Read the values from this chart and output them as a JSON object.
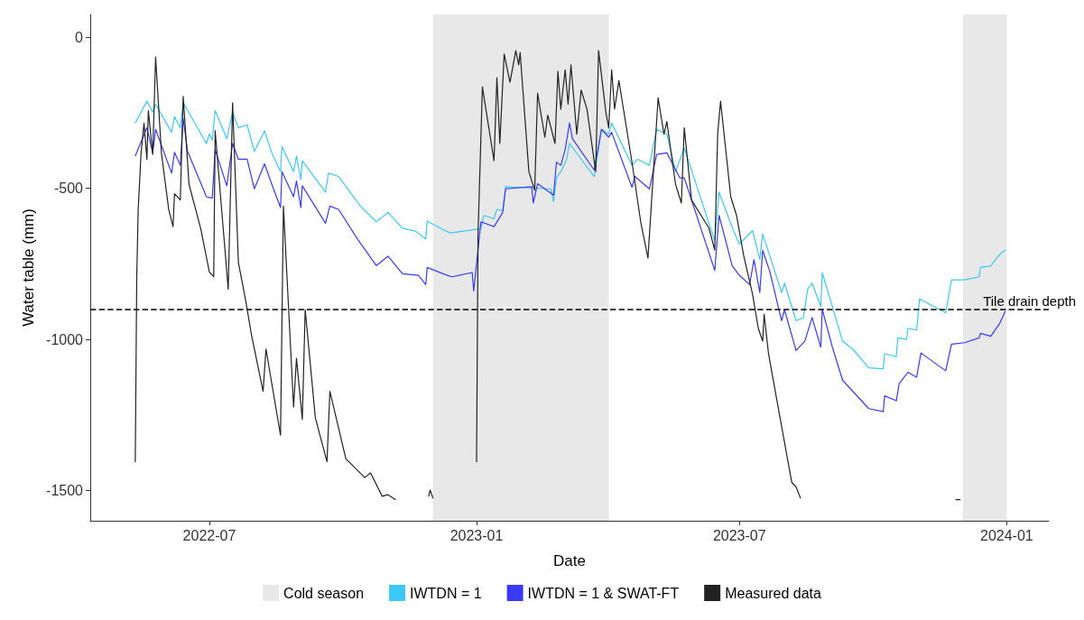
{
  "chart_data": {
    "type": "line",
    "xlabel": "Date",
    "ylabel": "Water table (mm)",
    "legend": "bottom",
    "xlim": [
      "2022-04-10",
      "2024-01-30"
    ],
    "xticks": [
      {
        "value": "2022-07-01",
        "label": "2022-07"
      },
      {
        "value": "2023-01-01",
        "label": "2023-01"
      },
      {
        "value": "2023-07-01",
        "label": "2023-07"
      },
      {
        "value": "2024-01-01",
        "label": "2024-01"
      }
    ],
    "ylim": [
      -1600,
      75
    ],
    "yticks": [
      0,
      -500,
      -1000,
      -1500
    ],
    "bands": [
      {
        "axis": "x",
        "from": "2022-12-02",
        "to": "2023-04-02",
        "label": "Cold season",
        "color": "#e8e8e8"
      },
      {
        "axis": "x",
        "from": "2023-12-02",
        "to": "2024-01-01",
        "color": "#e8e8e8"
      }
    ],
    "ref_lines": [
      {
        "axis": "y",
        "value": -900,
        "label": "Tile drain depth",
        "line_style": "dashed",
        "color": "#000000"
      }
    ],
    "series": [
      {
        "name": "IWTDN = 1",
        "color": "#3cc8f5",
        "x": [
          "2022-05-11",
          "2022-05-19",
          "2022-05-23",
          "2022-05-25",
          "2022-06-05",
          "2022-06-07",
          "2022-06-11",
          "2022-06-13",
          "2022-06-29",
          "2022-07-01",
          "2022-07-03",
          "2022-07-05",
          "2022-07-13",
          "2022-07-17",
          "2022-07-21",
          "2022-07-27",
          "2022-08-01",
          "2022-08-08",
          "2022-08-13",
          "2022-08-19",
          "2022-08-20",
          "2022-08-28",
          "2022-08-30",
          "2022-09-02",
          "2022-09-03",
          "2022-09-19",
          "2022-09-21",
          "2022-09-28",
          "2022-10-13",
          "2022-10-24",
          "2022-11-01",
          "2022-11-11",
          "2022-11-20",
          "2022-11-27",
          "2022-11-28",
          "2022-12-09",
          "2022-12-14",
          "2023-01-04",
          "2023-01-06",
          "2023-01-13",
          "2023-01-15",
          "2023-01-19",
          "2023-01-21",
          "2023-02-21",
          "2023-02-23",
          "2023-02-25",
          "2023-02-28",
          "2023-03-04",
          "2023-03-06",
          "2023-03-23",
          "2023-03-28",
          "2023-04-02",
          "2023-04-04",
          "2023-04-18",
          "2023-04-22",
          "2023-04-30",
          "2023-05-05",
          "2023-05-12",
          "2023-05-18",
          "2023-05-24",
          "2023-06-14",
          "2023-06-17",
          "2023-06-27",
          "2023-07-01",
          "2023-07-10",
          "2023-07-15",
          "2023-07-17",
          "2023-07-30",
          "2023-08-01",
          "2023-08-09",
          "2023-08-14",
          "2023-08-17",
          "2023-08-20",
          "2023-08-26",
          "2023-08-27",
          "2023-09-10",
          "2023-09-17",
          "2023-09-28",
          "2023-10-08",
          "2023-10-09",
          "2023-10-17",
          "2023-10-18",
          "2023-10-24",
          "2023-10-25",
          "2023-10-31",
          "2023-11-02",
          "2023-11-20",
          "2023-11-24",
          "2023-12-03",
          "2023-12-13",
          "2023-12-14",
          "2023-12-21",
          "2023-12-28",
          "2023-12-31"
        ],
        "values": [
          -284,
          -212,
          -248,
          -222,
          -315,
          -263,
          -300,
          -217,
          -352,
          -321,
          -341,
          -243,
          -336,
          -248,
          -300,
          -290,
          -378,
          -310,
          -383,
          -445,
          -362,
          -445,
          -393,
          -471,
          -409,
          -513,
          -450,
          -461,
          -559,
          -611,
          -580,
          -632,
          -642,
          -668,
          -609,
          -637,
          -648,
          -634,
          -590,
          -601,
          -570,
          -575,
          -495,
          -502,
          -544,
          -466,
          -445,
          -404,
          -352,
          -461,
          -305,
          -321,
          -284,
          -424,
          -404,
          -424,
          -305,
          -321,
          -445,
          -367,
          -674,
          -513,
          -642,
          -684,
          -640,
          -736,
          -651,
          -845,
          -814,
          -938,
          -928,
          -834,
          -814,
          -891,
          -779,
          -1006,
          -1032,
          -1094,
          -1097,
          -1047,
          -1058,
          -995,
          -1000,
          -964,
          -969,
          -866,
          -912,
          -803,
          -803,
          -793,
          -762,
          -757,
          -715,
          -705
        ]
      },
      {
        "name": "IWTDN = 1 & SWAT-FT",
        "color": "#3a3af5",
        "x": [
          "2022-05-11",
          "2022-05-15",
          "2022-05-19",
          "2022-05-23",
          "2022-05-25",
          "2022-06-05",
          "2022-06-07",
          "2022-06-11",
          "2022-06-13",
          "2022-06-16",
          "2022-06-29",
          "2022-07-03",
          "2022-07-05",
          "2022-07-13",
          "2022-07-17",
          "2022-07-21",
          "2022-07-27",
          "2022-08-01",
          "2022-08-08",
          "2022-08-13",
          "2022-08-19",
          "2022-08-20",
          "2022-08-28",
          "2022-08-30",
          "2022-09-02",
          "2022-09-03",
          "2022-09-19",
          "2022-09-22",
          "2022-09-28",
          "2022-10-11",
          "2022-10-24",
          "2022-11-01",
          "2022-11-11",
          "2022-11-22",
          "2022-11-27",
          "2022-11-28",
          "2022-12-09",
          "2022-12-15",
          "2022-12-29",
          "2022-12-30",
          "2023-01-04",
          "2023-01-13",
          "2023-01-19",
          "2023-01-21",
          "2023-02-08",
          "2023-02-09",
          "2023-02-12",
          "2023-02-23",
          "2023-02-25",
          "2023-02-28",
          "2023-03-03",
          "2023-03-06",
          "2023-03-08",
          "2023-03-23",
          "2023-03-28",
          "2023-04-02",
          "2023-04-04",
          "2023-04-18",
          "2023-04-20",
          "2023-04-30",
          "2023-05-05",
          "2023-05-12",
          "2023-05-21",
          "2023-05-24",
          "2023-06-14",
          "2023-06-17",
          "2023-06-26",
          "2023-07-01",
          "2023-07-08",
          "2023-07-11",
          "2023-07-15",
          "2023-07-17",
          "2023-07-22",
          "2023-07-30",
          "2023-08-01",
          "2023-08-09",
          "2023-08-15",
          "2023-08-20",
          "2023-08-26",
          "2023-08-27",
          "2023-09-03",
          "2023-09-10",
          "2023-09-19",
          "2023-09-28",
          "2023-10-08",
          "2023-10-09",
          "2023-10-17",
          "2023-10-19",
          "2023-10-25",
          "2023-10-31",
          "2023-11-03",
          "2023-11-20",
          "2023-11-24",
          "2023-12-03",
          "2023-12-13",
          "2023-12-14",
          "2023-12-21",
          "2023-12-27",
          "2023-12-31"
        ],
        "values": [
          -393,
          -347,
          -300,
          -383,
          -305,
          -450,
          -381,
          -424,
          -269,
          -378,
          -528,
          -533,
          -372,
          -492,
          -352,
          -404,
          -404,
          -502,
          -419,
          -487,
          -564,
          -445,
          -528,
          -476,
          -564,
          -492,
          -616,
          -559,
          -570,
          -668,
          -756,
          -725,
          -783,
          -788,
          -819,
          -762,
          -783,
          -793,
          -779,
          -840,
          -611,
          -627,
          -580,
          -502,
          -495,
          -549,
          -485,
          -523,
          -414,
          -424,
          -372,
          -284,
          -336,
          -440,
          -305,
          -331,
          -315,
          -497,
          -461,
          -502,
          -388,
          -383,
          -466,
          -466,
          -772,
          -590,
          -757,
          -788,
          -819,
          -736,
          -845,
          -705,
          -777,
          -938,
          -902,
          -1037,
          -1006,
          -928,
          -1026,
          -900,
          -1026,
          -1135,
          -1182,
          -1229,
          -1239,
          -1187,
          -1203,
          -1146,
          -1109,
          -1125,
          -1045,
          -1104,
          -1016,
          -1011,
          -995,
          -980,
          -990,
          -949,
          -907
        ]
      },
      {
        "name": "Measured data",
        "color": "#222222",
        "x": [
          "2022-05-11",
          "2022-05-12",
          "2022-05-13",
          "2022-05-15",
          "2022-05-17",
          "2022-05-19",
          "2022-05-20",
          "2022-05-23",
          "2022-05-25",
          "2022-05-29",
          "2022-06-03",
          "2022-06-06",
          "2022-06-07",
          "2022-06-11",
          "2022-06-13",
          "2022-06-17",
          "2022-06-25",
          "2022-07-01",
          "2022-07-04",
          "2022-07-05",
          "2022-07-14",
          "2022-07-17",
          "2022-07-21",
          "2022-07-26",
          "2022-07-30",
          "2022-08-07",
          "2022-08-09",
          "2022-08-19",
          "2022-08-21",
          "2022-08-28",
          "2022-08-30",
          "2022-09-03",
          "2022-09-05",
          "2022-09-12",
          "2022-09-20",
          "2022-09-22",
          "2022-10-03",
          "2022-10-16",
          "2022-10-20",
          "2022-10-28",
          "2022-11-01",
          "2022-11-06",
          "2022-11-15",
          "2022-11-29",
          "2022-11-30",
          "2022-12-02",
          "2022-12-15",
          "2023-01-01",
          "2023-01-02",
          "2023-01-05",
          "2023-01-13",
          "2023-01-15",
          "2023-01-17",
          "2023-01-20",
          "2023-01-24",
          "2023-01-28",
          "2023-01-30",
          "2023-01-31",
          "2023-02-06",
          "2023-02-10",
          "2023-02-12",
          "2023-02-17",
          "2023-02-19",
          "2023-02-24",
          "2023-02-26",
          "2023-02-28",
          "2023-03-03",
          "2023-03-05",
          "2023-03-07",
          "2023-03-11",
          "2023-03-14",
          "2023-03-18",
          "2023-03-24",
          "2023-03-26",
          "2023-03-31",
          "2023-04-02",
          "2023-04-04",
          "2023-04-06",
          "2023-04-09",
          "2023-04-18",
          "2023-04-24",
          "2023-04-29",
          "2023-05-06",
          "2023-05-10",
          "2023-05-12",
          "2023-05-18",
          "2023-05-22",
          "2023-05-24",
          "2023-05-29",
          "2023-06-10",
          "2023-06-14",
          "2023-06-16",
          "2023-06-18",
          "2023-06-25",
          "2023-06-29",
          "2023-07-04",
          "2023-07-10",
          "2023-07-14",
          "2023-07-17",
          "2023-07-18",
          "2023-07-21",
          "2023-07-28",
          "2023-08-06",
          "2023-08-09",
          "2023-08-12",
          "2023-10-01",
          "2023-11-27",
          "2023-11-30"
        ],
        "values": [
          -1405,
          -798,
          -570,
          -383,
          -284,
          -404,
          -243,
          -388,
          -66,
          -383,
          -570,
          -627,
          -518,
          -539,
          -196,
          -487,
          -632,
          -777,
          -793,
          -310,
          -834,
          -217,
          -746,
          -871,
          -985,
          -1172,
          -1032,
          -1317,
          -559,
          -1224,
          -1063,
          -1265,
          -902,
          -1260,
          -1405,
          -1172,
          -1395,
          -1457,
          -1442,
          -1519,
          -1514,
          -1530,
          null,
          -1519,
          -1499,
          -1525,
          null,
          -1405,
          -653,
          -165,
          -409,
          -134,
          -352,
          -56,
          -149,
          -45,
          -92,
          -51,
          -445,
          -507,
          -186,
          -331,
          -258,
          -352,
          -113,
          -238,
          -108,
          -222,
          -92,
          -321,
          -175,
          -238,
          -445,
          -45,
          -248,
          -300,
          -108,
          -238,
          -144,
          -414,
          -611,
          -731,
          -201,
          -321,
          -279,
          -487,
          -549,
          -300,
          -539,
          -632,
          -705,
          -321,
          -212,
          -528,
          -590,
          -725,
          -850,
          -964,
          -1006,
          -917,
          -1047,
          -1234,
          -1473,
          -1488,
          -1525,
          null,
          -1530,
          -1530
        ]
      }
    ]
  }
}
